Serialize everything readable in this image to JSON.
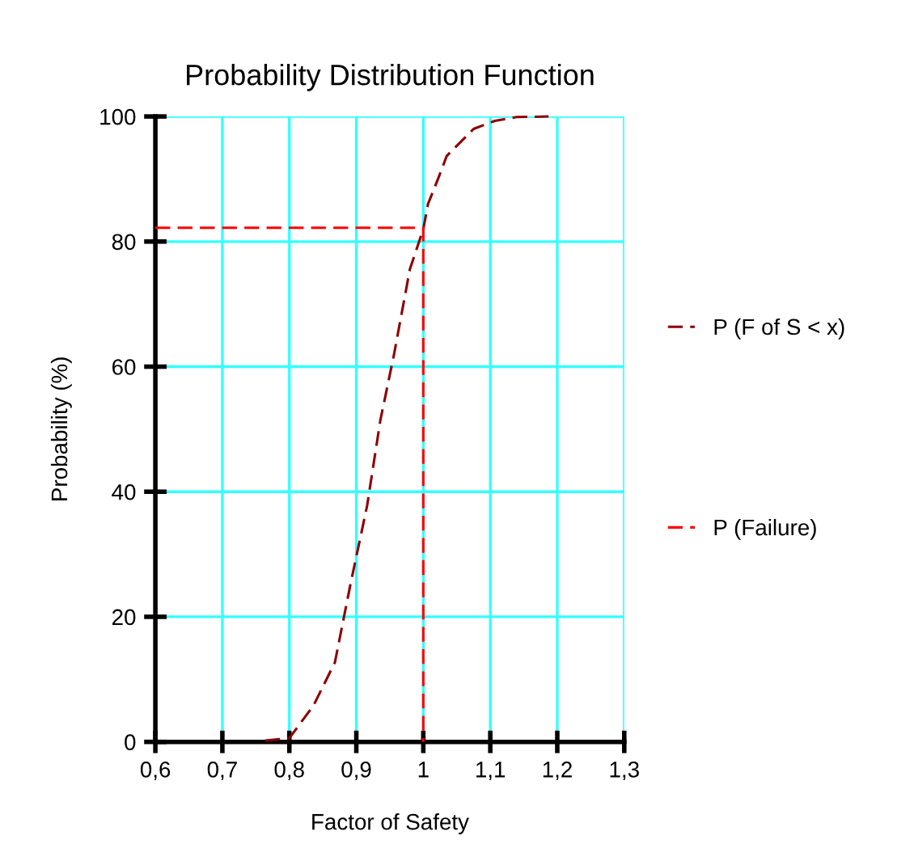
{
  "chart_data": {
    "type": "line",
    "title": "Probability Distribution Function",
    "xlabel": "Factor of Safety",
    "ylabel": "Probability (%)",
    "xlim": [
      0.6,
      1.3
    ],
    "xticks": [
      {
        "value": 0.6,
        "label": "0,6"
      },
      {
        "value": 0.7,
        "label": "0,7"
      },
      {
        "value": 0.8,
        "label": "0,8"
      },
      {
        "value": 0.9,
        "label": "0,9"
      },
      1,
      {
        "value": 1.1,
        "label": "1,1"
      },
      {
        "value": 1.2,
        "label": "1,2"
      },
      {
        "value": 1.3,
        "label": "1,3"
      }
    ],
    "ylim": [
      0,
      100
    ],
    "yticks": [
      0,
      20,
      40,
      60,
      80,
      100
    ],
    "grid": true,
    "legend": "right",
    "line_style": "dashed",
    "series": [
      {
        "name": "P (F of S < x)",
        "color": "#8b0000",
        "x": [
          0.764,
          0.8,
          0.836,
          0.868,
          0.892,
          0.916,
          0.936,
          0.956,
          0.98,
          1.0,
          1.007,
          1.023,
          1.035,
          1.075,
          1.107,
          1.139,
          1.187
        ],
        "values": [
          0.2,
          0.6,
          5.8,
          12.7,
          25.6,
          37.7,
          51.5,
          61.8,
          75.6,
          82,
          86,
          90.3,
          93.7,
          98,
          99.3,
          99.9,
          100
        ]
      },
      {
        "name": "P (Failure)",
        "color": "#ff0000",
        "x": [
          0.6,
          1.0,
          1.0
        ],
        "values": [
          82.2,
          82.2,
          0
        ]
      }
    ]
  }
}
